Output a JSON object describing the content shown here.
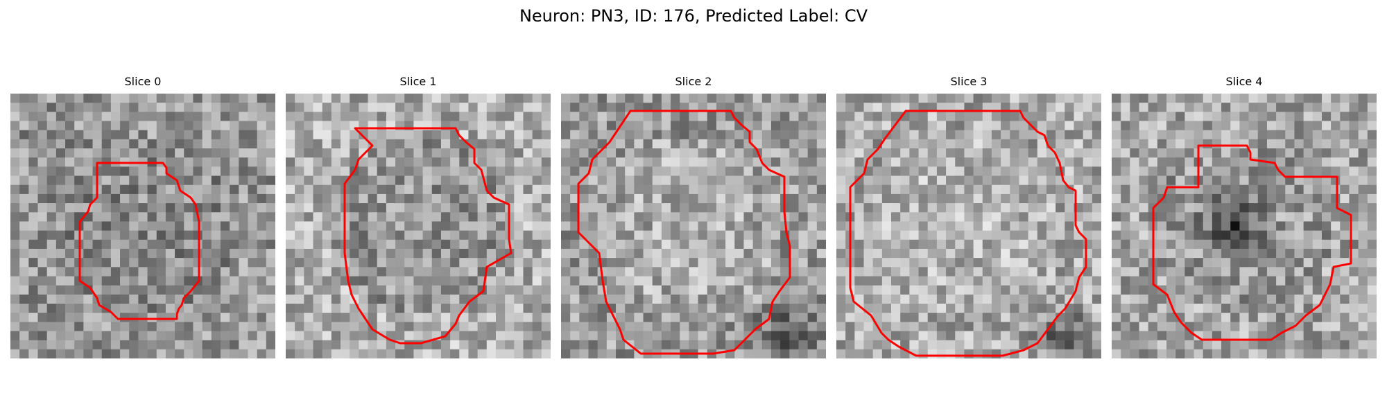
{
  "figure": {
    "title": "Neuron: PN3, ID: 176, Predicted Label: CV"
  },
  "colors": {
    "background": "#ffffff",
    "contour": "#ff0000",
    "image_colormap": "gray"
  },
  "panels": [
    {
      "title": "Slice 0"
    },
    {
      "title": "Slice 1"
    },
    {
      "title": "Slice 2"
    },
    {
      "title": "Slice 3"
    },
    {
      "title": "Slice 4"
    }
  ]
}
